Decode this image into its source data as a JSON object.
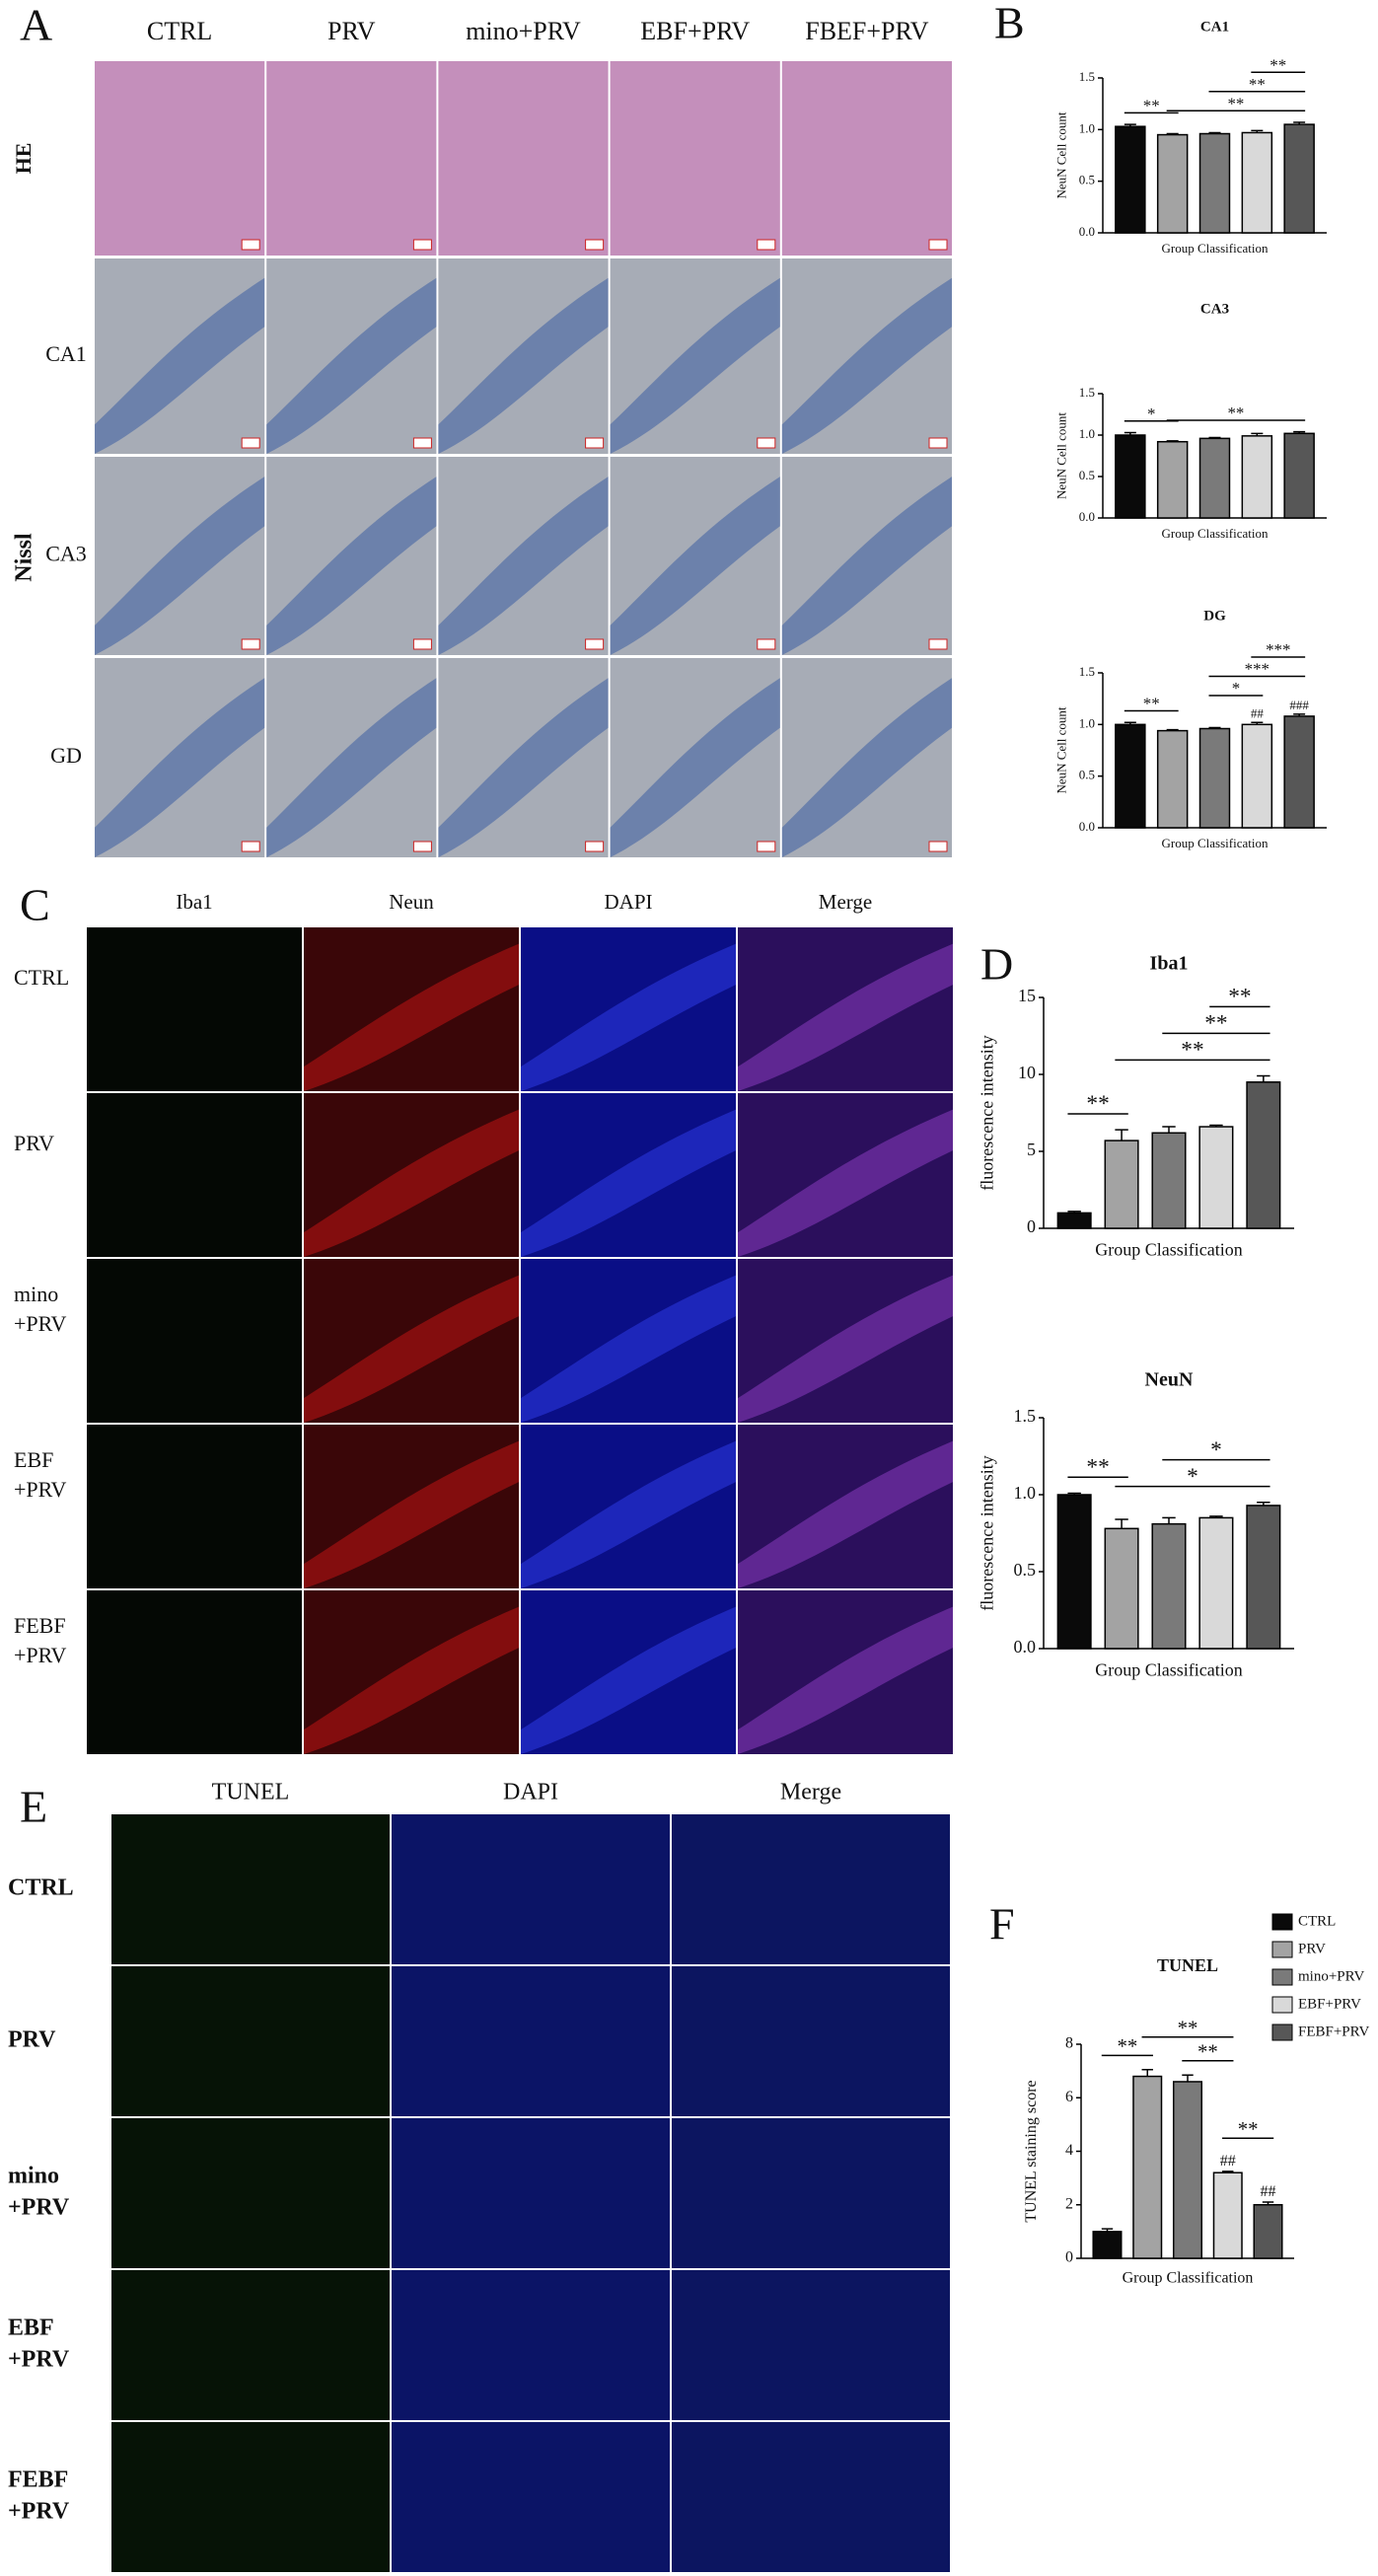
{
  "panels": [
    {
      "letter": "A",
      "columns": [
        "CTRL",
        "PRV",
        "mino+PRV",
        "EBF+PRV",
        "FBEF+PRV"
      ],
      "rows": [
        "HE",
        "CA1",
        "CA3",
        "GD"
      ],
      "group": "Nissl"
    },
    {
      "letter": "B"
    },
    {
      "letter": "C",
      "columns": [
        "Iba1",
        "Neun",
        "DAPI",
        "Merge"
      ],
      "rows": [
        [
          "CTRL"
        ],
        [
          "PRV"
        ],
        [
          "mino",
          "+PRV"
        ],
        [
          "EBF",
          "+PRV"
        ],
        [
          "FEBF",
          "+PRV"
        ]
      ]
    },
    {
      "letter": "D"
    },
    {
      "letter": "E",
      "columns": [
        "TUNEL",
        "DAPI",
        "Merge"
      ],
      "rows": [
        [
          "CTRL"
        ],
        [
          "PRV"
        ],
        [
          "mino",
          "+PRV"
        ],
        [
          "EBF",
          "+PRV"
        ],
        [
          "FEBF",
          "+PRV"
        ]
      ]
    },
    {
      "letter": "F"
    }
  ],
  "chart_data": [
    {
      "type": "bar",
      "title": "CA1",
      "y_label": "NeuN Cell count",
      "x_label": "Group Classification",
      "values": [
        1.03,
        0.95,
        0.96,
        0.97,
        1.05
      ],
      "errors": [
        0.02,
        0.01,
        0.01,
        0.02,
        0.02
      ],
      "colors": [
        "#0a0a0a",
        "#a3a3a3",
        "#7a7a7a",
        "#d9d9d9",
        "#575757"
      ],
      "ylim": [
        0,
        1.5
      ],
      "yticks": [
        {
          "value": 0,
          "label": "0.0"
        },
        0.5,
        {
          "value": 1,
          "label": "1.0"
        },
        1.5
      ],
      "annotations": [
        {
          "text": "**",
          "from": 0,
          "to": 1
        },
        {
          "text": "**",
          "from": 1,
          "to": 4
        },
        {
          "text": "**",
          "from": 2,
          "to": 4
        },
        {
          "text": "**",
          "from": 3,
          "to": 4
        }
      ]
    },
    {
      "type": "bar",
      "title": "CA3",
      "y_label": "NeuN Cell count",
      "x_label": "Group Classification",
      "values": [
        1.0,
        0.92,
        0.96,
        0.99,
        1.02
      ],
      "errors": [
        0.03,
        0.01,
        0.01,
        0.03,
        0.02
      ],
      "colors": [
        "#0a0a0a",
        "#a3a3a3",
        "#7a7a7a",
        "#d9d9d9",
        "#575757"
      ],
      "ylim": [
        0,
        1.5
      ],
      "yticks": [
        {
          "value": 0,
          "label": "0.0"
        },
        0.5,
        {
          "value": 1,
          "label": "1.0"
        },
        1.5
      ],
      "annotations": [
        {
          "text": "*",
          "from": 0,
          "to": 1
        },
        {
          "text": "**",
          "from": 1,
          "to": 4
        }
      ]
    },
    {
      "type": "bar",
      "title": "DG",
      "y_label": "NeuN Cell count",
      "x_label": "Group Classification",
      "values": [
        1.0,
        0.94,
        0.96,
        1.0,
        1.08
      ],
      "errors": [
        0.02,
        0.01,
        0.01,
        0.02,
        0.02
      ],
      "bar_labels": [
        null,
        null,
        null,
        "##",
        "###"
      ],
      "colors": [
        "#0a0a0a",
        "#a3a3a3",
        "#7a7a7a",
        "#d9d9d9",
        "#575757"
      ],
      "ylim": [
        0,
        1.5
      ],
      "yticks": [
        {
          "value": 0,
          "label": "0.0"
        },
        0.5,
        {
          "value": 1,
          "label": "1.0"
        },
        1.5
      ],
      "annotations": [
        {
          "text": "**",
          "from": 0,
          "to": 1
        },
        {
          "text": "*",
          "from": 2,
          "to": 3
        },
        {
          "text": "***",
          "from": 2,
          "to": 4
        },
        {
          "text": "***",
          "from": 3,
          "to": 4
        }
      ]
    },
    {
      "type": "bar",
      "title": "Iba1",
      "y_label": "fluorescence intensity",
      "x_label": "Group Classification",
      "values": [
        1.0,
        5.7,
        6.2,
        6.6,
        9.5
      ],
      "errors": [
        0.1,
        0.7,
        0.4,
        0.1,
        0.4
      ],
      "colors": [
        "#0a0a0a",
        "#a3a3a3",
        "#7a7a7a",
        "#d9d9d9",
        "#575757"
      ],
      "ylim": [
        0,
        15
      ],
      "yticks": [
        0,
        5,
        10,
        15
      ],
      "annotations": [
        {
          "text": "**",
          "from": 0,
          "to": 1
        },
        {
          "text": "**",
          "from": 1,
          "to": 4
        },
        {
          "text": "**",
          "from": 2,
          "to": 4
        },
        {
          "text": "**",
          "from": 3,
          "to": 4
        }
      ]
    },
    {
      "type": "bar",
      "title": "NeuN",
      "y_label": "fluorescence intensity",
      "x_label": "Group Classification",
      "values": [
        1.0,
        0.78,
        0.81,
        0.85,
        0.93
      ],
      "errors": [
        0.01,
        0.06,
        0.04,
        0.01,
        0.02
      ],
      "colors": [
        "#0a0a0a",
        "#a3a3a3",
        "#7a7a7a",
        "#d9d9d9",
        "#575757"
      ],
      "ylim": [
        0,
        1.5
      ],
      "yticks": [
        {
          "value": 0,
          "label": "0.0"
        },
        0.5,
        {
          "value": 1,
          "label": "1.0"
        },
        1.5
      ],
      "annotations": [
        {
          "text": "**",
          "from": 0,
          "to": 1
        },
        {
          "text": "*",
          "from": 1,
          "to": 4
        },
        {
          "text": "*",
          "from": 2,
          "to": 4
        }
      ]
    },
    {
      "type": "bar",
      "title": "TUNEL",
      "y_label": "TUNEL staining score",
      "x_label": "Group Classification",
      "categories": [
        "CTRL",
        "PRV",
        "mino+PRV",
        "EBF+PRV",
        "FEBF+PRV"
      ],
      "legend": "top-right",
      "values": [
        1.0,
        6.8,
        6.6,
        3.2,
        2.0
      ],
      "errors": [
        0.1,
        0.25,
        0.25,
        0.05,
        0.1
      ],
      "bar_labels": [
        null,
        null,
        null,
        "##",
        "##"
      ],
      "colors": [
        "#0a0a0a",
        "#a3a3a3",
        "#7a7a7a",
        "#d9d9d9",
        "#575757"
      ],
      "ylim": [
        0,
        8
      ],
      "yticks": [
        0,
        2,
        4,
        6,
        8
      ],
      "annotations": [
        {
          "text": "**",
          "from": 0,
          "to": 1
        },
        {
          "text": "**",
          "from": 2,
          "to": 3
        },
        {
          "text": "**",
          "from": 1,
          "to": 3
        },
        {
          "text": "**",
          "from": 3,
          "to": 4
        }
      ]
    }
  ]
}
